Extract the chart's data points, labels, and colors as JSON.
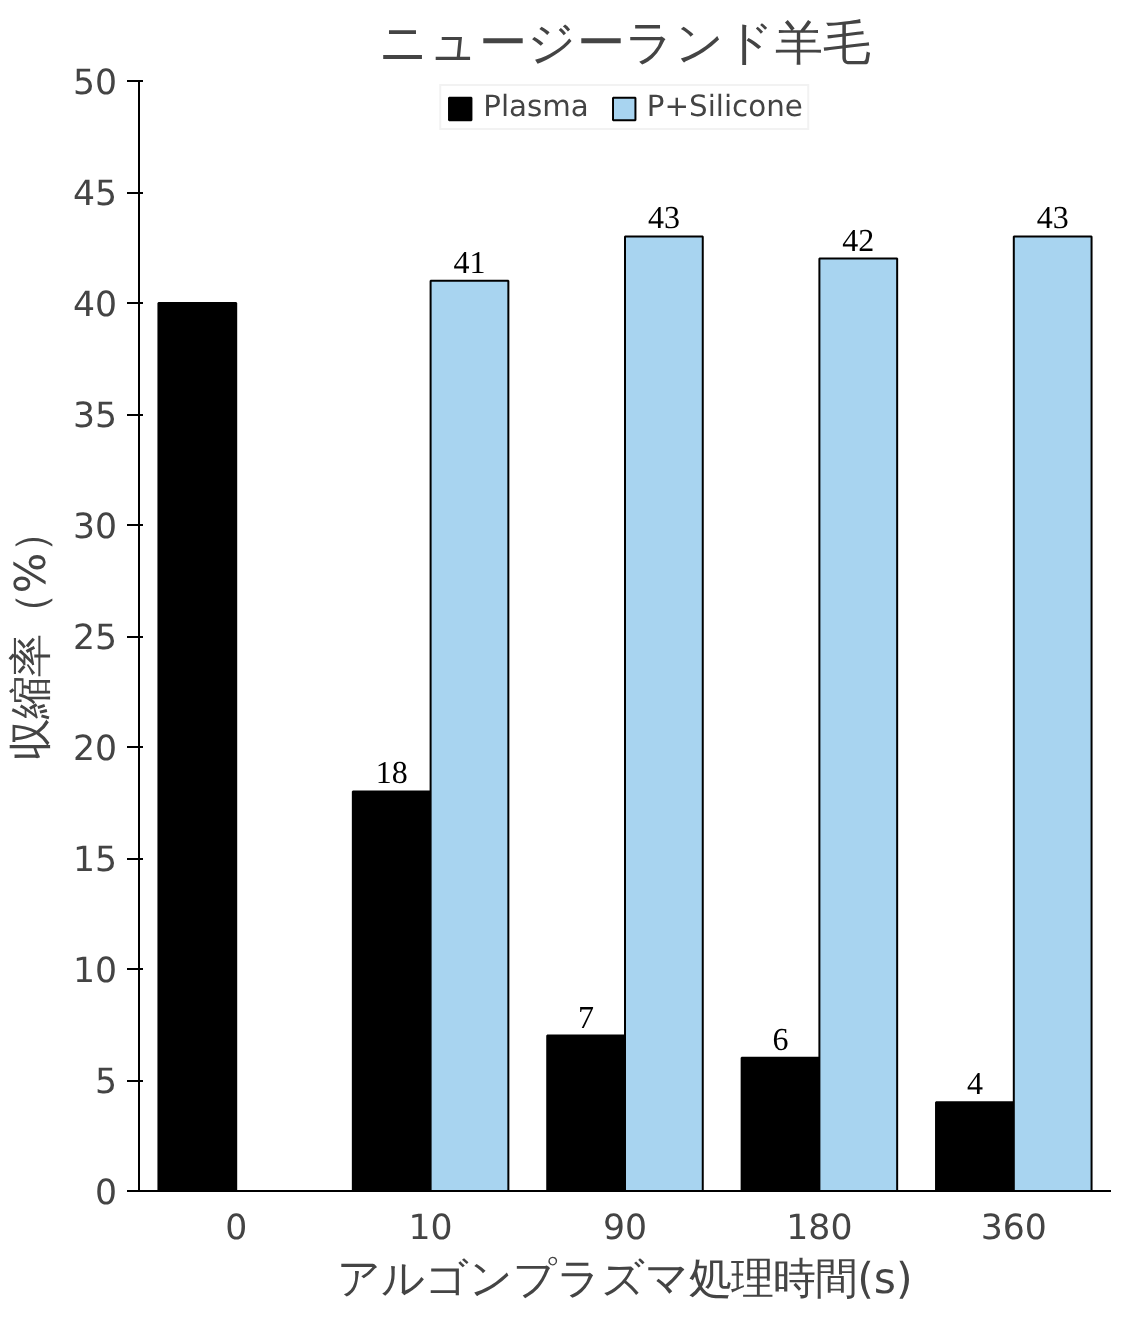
{
  "chart_data": {
    "type": "bar",
    "title": "ニュージーランド羊毛",
    "xlabel": "アルゴンプラズマ処理時間(s)",
    "ylabel": "収縮率（%）",
    "categories": [
      "0",
      "10",
      "90",
      "180",
      "360"
    ],
    "series": [
      {
        "name": "Plasma",
        "color": "#000000",
        "values": [
          40,
          18,
          7,
          6,
          4
        ],
        "value_labels": [
          null,
          "18",
          "7",
          "6",
          "4"
        ]
      },
      {
        "name": "P+Silicone",
        "color": "#a8d4f0",
        "values": [
          null,
          41,
          43,
          42,
          43
        ],
        "value_labels": [
          null,
          "41",
          "43",
          "42",
          "43"
        ]
      }
    ],
    "ylim": [
      0,
      50
    ],
    "yticks": [
      0,
      5,
      10,
      15,
      20,
      25,
      30,
      35,
      40,
      45,
      50
    ],
    "grid": false,
    "legend": "top"
  }
}
